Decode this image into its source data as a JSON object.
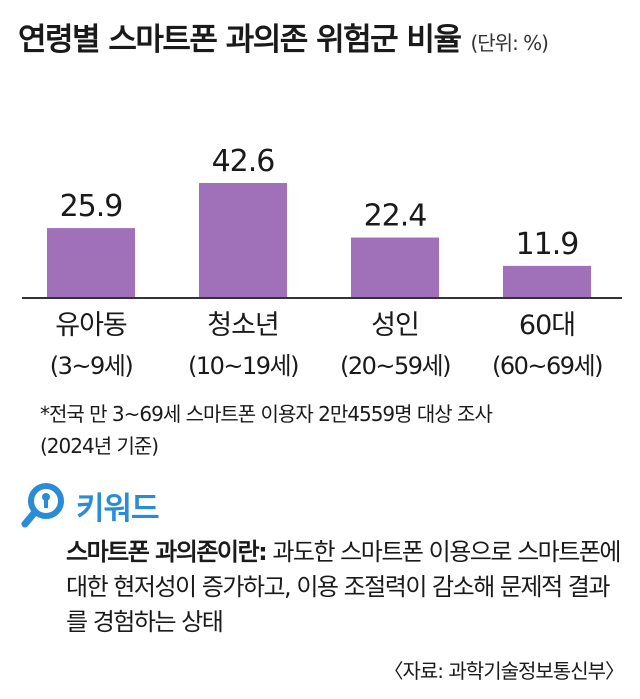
{
  "header": {
    "title": "연령별 스마트폰 과의존 위험군 비율",
    "unit": "(단위: %)"
  },
  "chart_data": {
    "type": "bar",
    "title": "연령별 스마트폰 과의존 위험군 비율",
    "unit": "%",
    "categories": [
      "유아동",
      "청소년",
      "성인",
      "60대"
    ],
    "subcategories": [
      "(3~9세)",
      "(10~19세)",
      "(20~59세)",
      "(60~69세)"
    ],
    "values": [
      25.9,
      42.6,
      22.4,
      11.9
    ],
    "value_labels": [
      "25.9",
      "42.6",
      "22.4",
      "11.9"
    ],
    "ylim": [
      0,
      45
    ],
    "grid": false,
    "colors": {
      "bar": "#a070b8"
    }
  },
  "notes": {
    "line1": "*전국 만 3~69세 스마트폰 이용자 2만4559명 대상 조사",
    "line2": "(2024년 기준)"
  },
  "keyword": {
    "icon": "magnifier-icon",
    "title": "키워드",
    "color": "#2a8cd6",
    "term": "스마트폰 과의존이란:",
    "definition": " 과도한 스마트폰 이용으로 스마트폰에 대한 현저성이 증가하고, 이용 조절력이 감소해 문제적 결과를 경험하는 상태"
  },
  "source": "〈자료: 과학기술정보통신부〉"
}
